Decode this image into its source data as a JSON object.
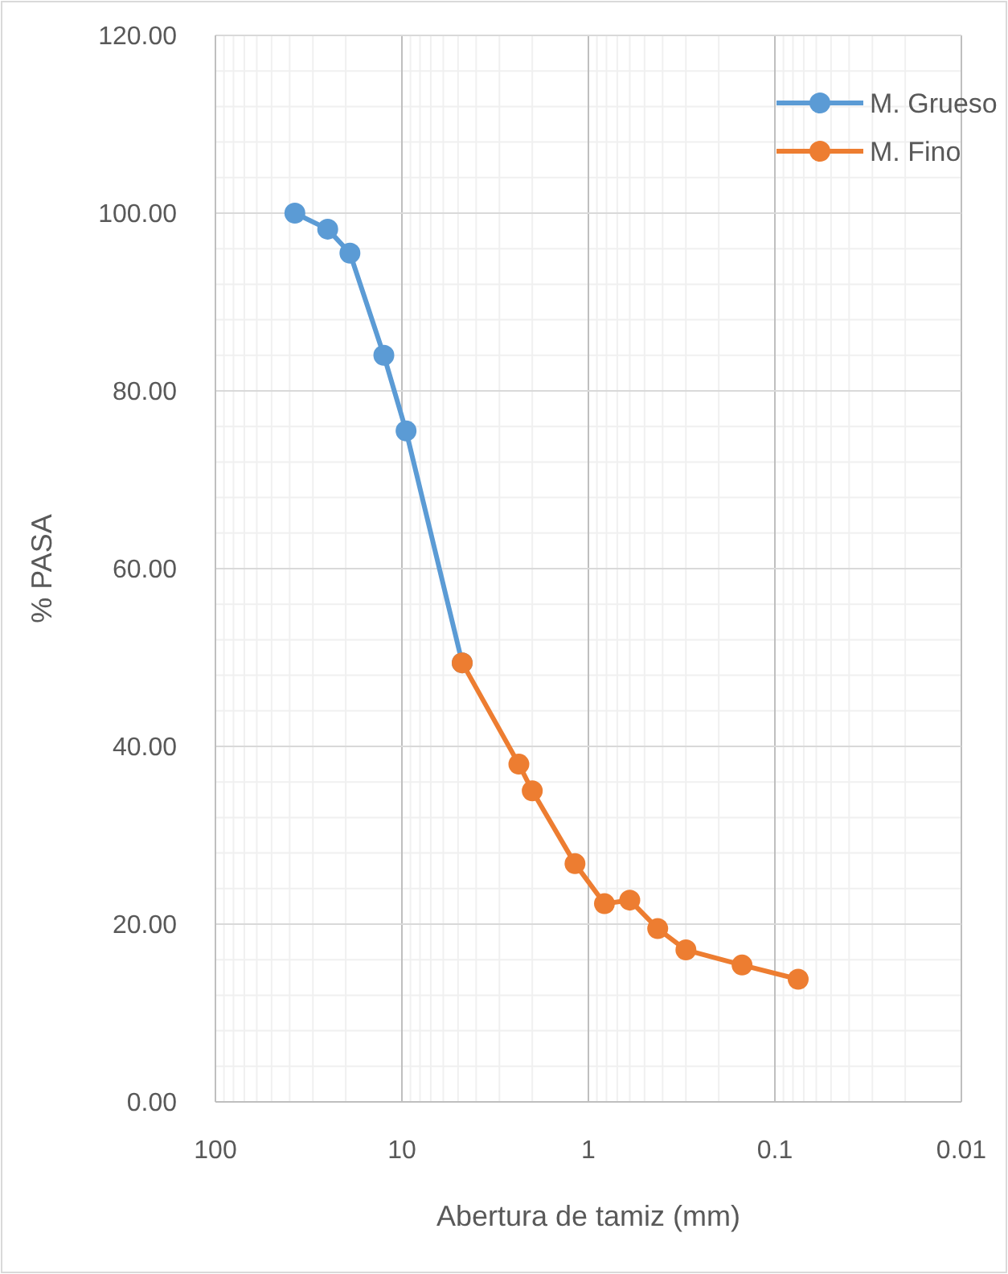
{
  "chart_data": {
    "type": "line",
    "xlabel": "Abertura de tamiz (mm)",
    "ylabel": "% PASA",
    "log": "x",
    "grid": true,
    "legend": "top right",
    "marker": "circle",
    "line_style": "solid",
    "xlim": [
      100,
      0.01
    ],
    "xticks": [
      100,
      10,
      1,
      0.1,
      0.01
    ],
    "ylim": [
      0,
      120
    ],
    "yticks": [
      {
        "value": 0,
        "label": "0.00"
      },
      {
        "value": 20,
        "label": "20.00"
      },
      {
        "value": 40,
        "label": "40.00"
      },
      {
        "value": 60,
        "label": "60.00"
      },
      {
        "value": 80,
        "label": "80.00"
      },
      {
        "value": 100,
        "label": "100.00"
      },
      {
        "value": 120,
        "label": "120.00"
      }
    ],
    "series": [
      {
        "name": "M. Grueso",
        "color": "#5b9bd5",
        "x": [
          37.5,
          25,
          19,
          12.5,
          9.5,
          4.75
        ],
        "values": [
          100,
          98.2,
          95.5,
          84.0,
          75.5,
          49.4
        ]
      },
      {
        "name": "M. Fino",
        "color": "#ed7d31",
        "x": [
          4.75,
          2.36,
          2.0,
          1.18,
          0.82,
          0.6,
          0.425,
          0.3,
          0.15,
          0.075
        ],
        "values": [
          49.4,
          38.0,
          35.0,
          26.8,
          22.3,
          22.7,
          19.5,
          17.1,
          15.4,
          13.8
        ]
      }
    ]
  }
}
